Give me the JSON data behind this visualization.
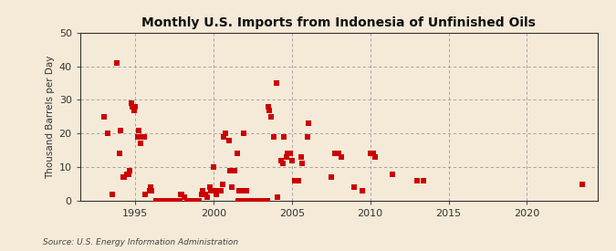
{
  "title": "Monthly U.S. Imports from Indonesia of Unfinished Oils",
  "ylabel": "Thousand Barrels per Day",
  "source": "Source: U.S. Energy Information Administration",
  "background_color": "#f5ead8",
  "plot_bg_color": "#f5ead8",
  "marker_color": "#cc0000",
  "marker_size": 5,
  "ylim": [
    0,
    50
  ],
  "yticks": [
    0,
    10,
    20,
    30,
    40,
    50
  ],
  "xlim_start": 1991.5,
  "xlim_end": 2024.5,
  "xticks": [
    1995,
    2000,
    2005,
    2010,
    2015,
    2020
  ],
  "data_points": [
    [
      1993.0,
      25
    ],
    [
      1993.25,
      20
    ],
    [
      1993.58,
      2
    ],
    [
      1993.83,
      41
    ],
    [
      1994.0,
      14
    ],
    [
      1994.08,
      21
    ],
    [
      1994.25,
      7
    ],
    [
      1994.33,
      7
    ],
    [
      1994.5,
      8
    ],
    [
      1994.58,
      8
    ],
    [
      1994.67,
      9
    ],
    [
      1994.75,
      29
    ],
    [
      1994.83,
      28
    ],
    [
      1994.92,
      27
    ],
    [
      1995.0,
      28
    ],
    [
      1995.17,
      19
    ],
    [
      1995.25,
      21
    ],
    [
      1995.33,
      17
    ],
    [
      1995.5,
      19
    ],
    [
      1995.58,
      19
    ],
    [
      1995.67,
      2
    ],
    [
      1995.92,
      3
    ],
    [
      1996.0,
      4
    ],
    [
      1996.08,
      3
    ],
    [
      1996.33,
      0
    ],
    [
      1996.5,
      0
    ],
    [
      1996.75,
      0
    ],
    [
      1997.0,
      0
    ],
    [
      1997.08,
      0
    ],
    [
      1997.25,
      0
    ],
    [
      1997.42,
      0
    ],
    [
      1997.58,
      0
    ],
    [
      1997.67,
      0
    ],
    [
      1997.83,
      0
    ],
    [
      1997.92,
      2
    ],
    [
      1998.0,
      2
    ],
    [
      1998.17,
      1
    ],
    [
      1998.33,
      0
    ],
    [
      1998.5,
      0
    ],
    [
      1998.58,
      0
    ],
    [
      1998.67,
      0
    ],
    [
      1998.92,
      0
    ],
    [
      1999.0,
      0
    ],
    [
      1999.08,
      0
    ],
    [
      1999.25,
      2
    ],
    [
      1999.33,
      3
    ],
    [
      1999.5,
      2
    ],
    [
      1999.58,
      1
    ],
    [
      1999.75,
      4
    ],
    [
      1999.83,
      3
    ],
    [
      2000.0,
      10
    ],
    [
      2000.08,
      3
    ],
    [
      2000.17,
      2
    ],
    [
      2000.25,
      3
    ],
    [
      2000.33,
      3
    ],
    [
      2000.5,
      3
    ],
    [
      2000.58,
      5
    ],
    [
      2000.67,
      19
    ],
    [
      2000.75,
      20
    ],
    [
      2001.0,
      18
    ],
    [
      2001.08,
      9
    ],
    [
      2001.17,
      4
    ],
    [
      2001.33,
      9
    ],
    [
      2001.5,
      14
    ],
    [
      2001.58,
      0
    ],
    [
      2001.67,
      3
    ],
    [
      2001.83,
      0
    ],
    [
      2001.92,
      20
    ],
    [
      2002.0,
      3
    ],
    [
      2002.08,
      3
    ],
    [
      2002.17,
      0
    ],
    [
      2002.33,
      0
    ],
    [
      2002.42,
      0
    ],
    [
      2002.5,
      0
    ],
    [
      2002.58,
      0
    ],
    [
      2002.67,
      0
    ],
    [
      2002.75,
      0
    ],
    [
      2002.83,
      0
    ],
    [
      2002.92,
      0
    ],
    [
      2003.0,
      0
    ],
    [
      2003.08,
      0
    ],
    [
      2003.25,
      0
    ],
    [
      2003.42,
      0
    ],
    [
      2003.5,
      28
    ],
    [
      2003.58,
      27
    ],
    [
      2003.67,
      25
    ],
    [
      2003.83,
      19
    ],
    [
      2004.0,
      35
    ],
    [
      2004.08,
      1
    ],
    [
      2004.33,
      12
    ],
    [
      2004.42,
      11
    ],
    [
      2004.5,
      19
    ],
    [
      2004.67,
      13
    ],
    [
      2004.75,
      14
    ],
    [
      2004.92,
      14
    ],
    [
      2005.0,
      12
    ],
    [
      2005.17,
      6
    ],
    [
      2005.42,
      6
    ],
    [
      2005.58,
      13
    ],
    [
      2005.67,
      11
    ],
    [
      2006.0,
      19
    ],
    [
      2006.08,
      23
    ],
    [
      2007.5,
      7
    ],
    [
      2007.75,
      14
    ],
    [
      2008.0,
      14
    ],
    [
      2008.17,
      13
    ],
    [
      2009.0,
      4
    ],
    [
      2009.5,
      3
    ],
    [
      2010.0,
      14
    ],
    [
      2010.17,
      14
    ],
    [
      2010.33,
      13
    ],
    [
      2011.42,
      8
    ],
    [
      2013.0,
      6
    ],
    [
      2013.42,
      6
    ],
    [
      2023.5,
      5
    ]
  ]
}
